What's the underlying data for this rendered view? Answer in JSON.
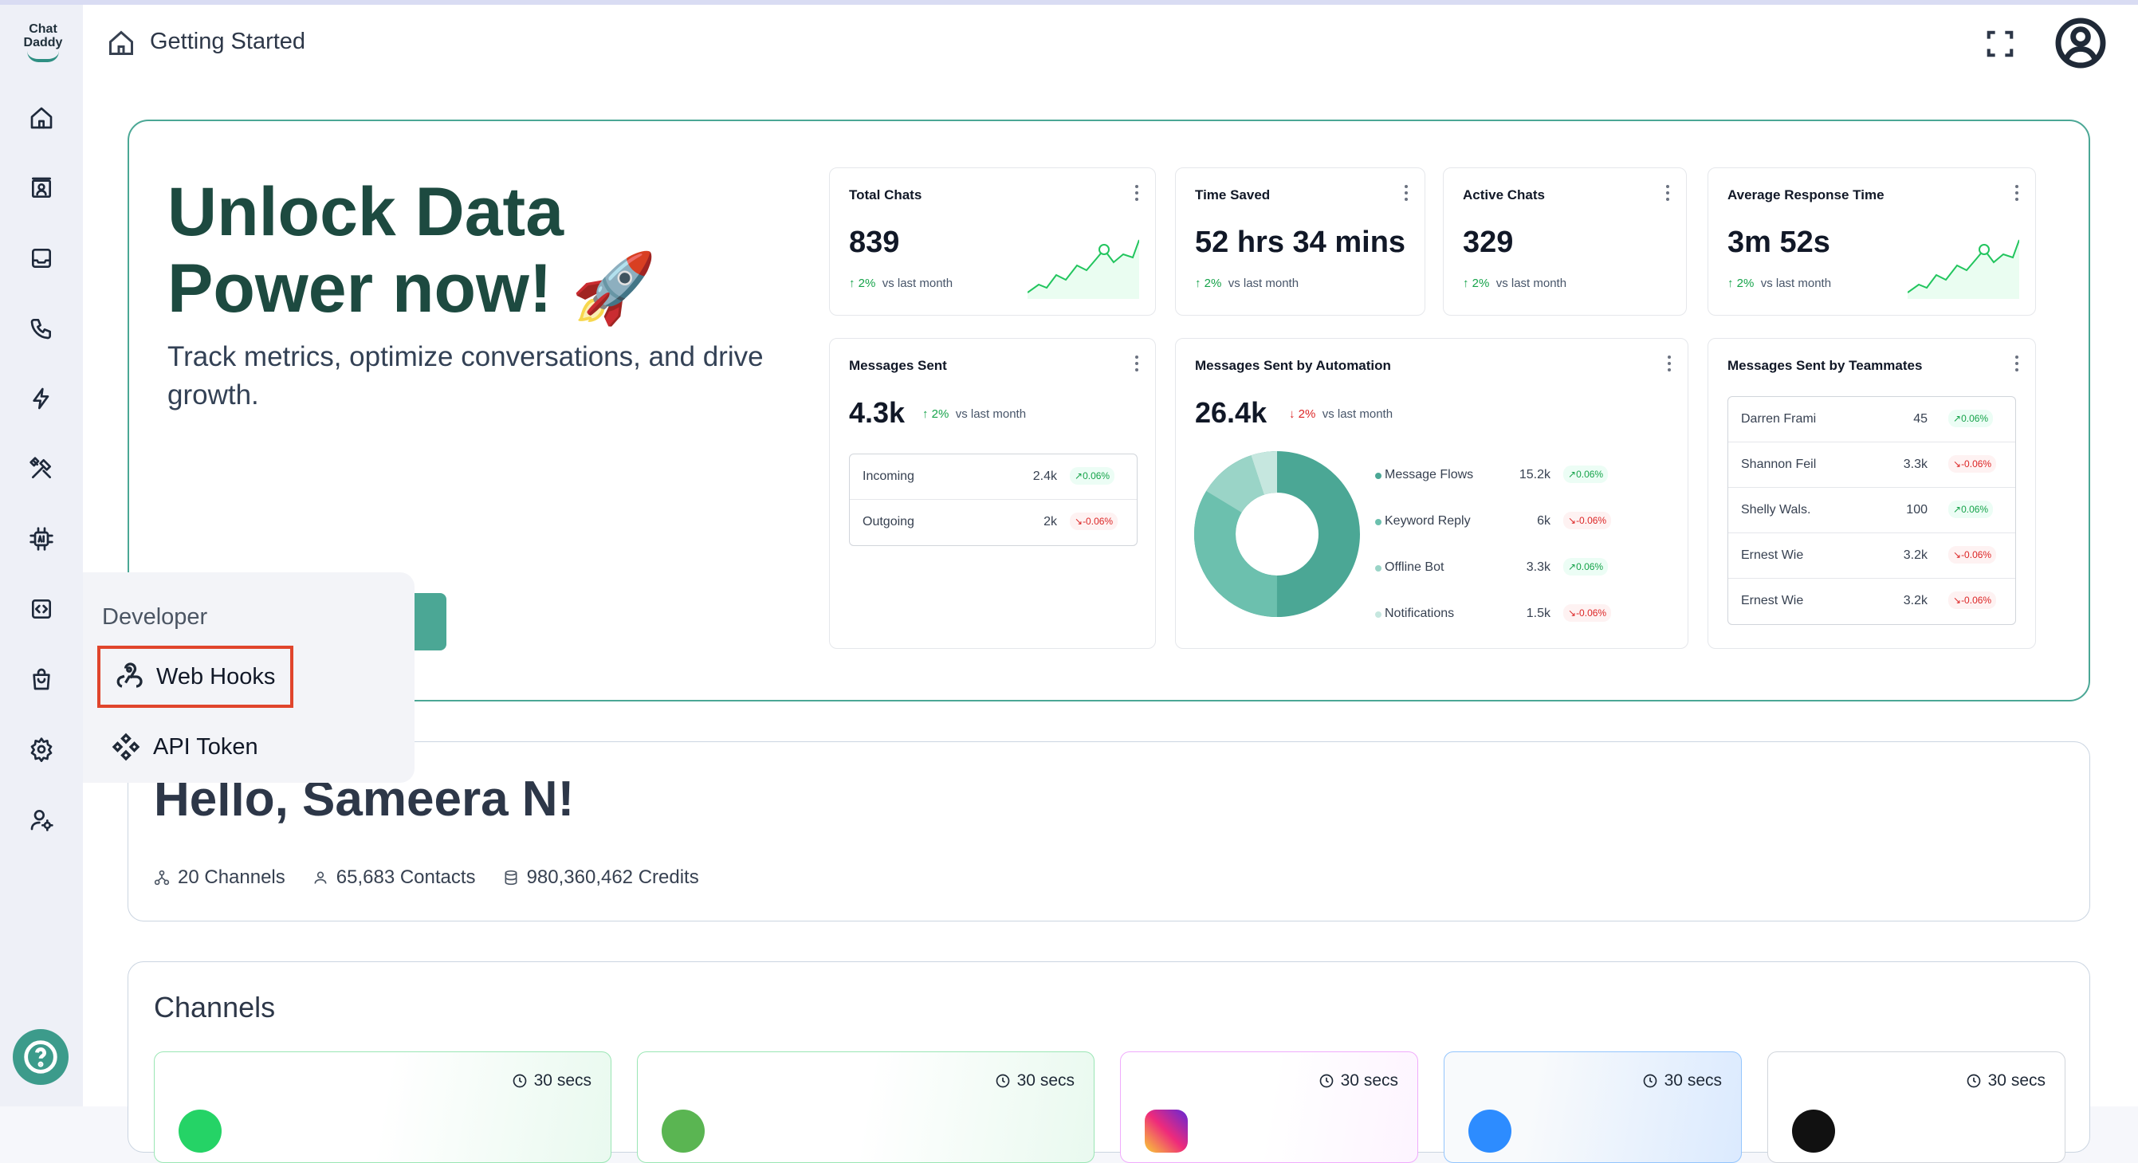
{
  "app": {
    "logo_text": "Chat Daddy",
    "page_title": "Getting Started"
  },
  "colors": {
    "brand": "#4ba795",
    "brand_dark": "#1d4a40",
    "up": "#16a34a",
    "down": "#dc2626",
    "highlight": "#e0452c"
  },
  "sidebar": {
    "icons": [
      "home-icon",
      "contacts-icon",
      "inbox-icon",
      "phone-icon",
      "lightning-icon",
      "tools-icon",
      "ai-chip-icon",
      "code-icon",
      "bag-icon",
      "settings-icon",
      "user-settings-icon"
    ],
    "help_icon": "help-icon"
  },
  "hero": {
    "title": "Unlock Data Power now! 🚀",
    "subtitle": "Track metrics, optimize conversations, and drive growth."
  },
  "stats": {
    "total_chats": {
      "title": "Total Chats",
      "value": "839",
      "change": "2%",
      "period": "vs last month"
    },
    "time_saved": {
      "title": "Time Saved",
      "value": "52 hrs 34 mins",
      "change": "2%",
      "period": "vs last month"
    },
    "active_chats": {
      "title": "Active Chats",
      "value": "329",
      "change": "2%",
      "period": "vs last month"
    },
    "avg_response": {
      "title": "Average Response Time",
      "value": "3m 52s",
      "change": "2%",
      "period": "vs last month"
    }
  },
  "messages_sent": {
    "title": "Messages Sent",
    "value": "4.3k",
    "change": "2%",
    "period": "vs last month",
    "rows": [
      {
        "name": "Incoming",
        "value": "2.4k",
        "badge": "0.06%"
      },
      {
        "name": "Outgoing",
        "value": "2k",
        "badge": "-0.06%"
      }
    ]
  },
  "automation": {
    "title": "Messages Sent by Automation",
    "value": "26.4k",
    "change": "2%",
    "period": "vs last month",
    "rows": [
      {
        "name": "Message Flows",
        "value": "15.2k",
        "badge": "0.06%"
      },
      {
        "name": "Keyword Reply",
        "value": "6k",
        "badge": "-0.06%"
      },
      {
        "name": "Offline Bot",
        "value": "3.3k",
        "badge": "0.06%"
      },
      {
        "name": "Notifications",
        "value": "1.5k",
        "badge": "-0.06%"
      }
    ]
  },
  "teammates": {
    "title": "Messages Sent by Teammates",
    "rows": [
      {
        "name": "Darren Frami",
        "value": "45",
        "badge": "0.06%"
      },
      {
        "name": "Shannon Feil",
        "value": "3.3k",
        "badge": "-0.06%"
      },
      {
        "name": "Shelly Wals.",
        "value": "100",
        "badge": "0.06%"
      },
      {
        "name": "Ernest Wie",
        "value": "3.2k",
        "badge": "-0.06%"
      },
      {
        "name": "Ernest Wie",
        "value": "3.2k",
        "badge": "-0.06%"
      }
    ]
  },
  "hello": {
    "title": "Hello, Sameera N!",
    "channels": "20 Channels",
    "contacts": "65,683 Contacts",
    "credits": "980,360,462 Credits"
  },
  "channels": {
    "title": "Channels",
    "cards": [
      {
        "time": "30 secs",
        "icon": "whatsapp-icon"
      },
      {
        "time": "30 secs",
        "icon": "whatsapp-business-icon"
      },
      {
        "time": "30 secs",
        "icon": "instagram-icon"
      },
      {
        "time": "30 secs",
        "icon": "messenger-icon"
      },
      {
        "time": "30 secs",
        "icon": "tiktok-icon"
      }
    ]
  },
  "developer_menu": {
    "heading": "Developer",
    "items": [
      {
        "label": "Web Hooks",
        "icon": "webhook-icon"
      },
      {
        "label": "API Token",
        "icon": "api-token-icon"
      }
    ]
  }
}
